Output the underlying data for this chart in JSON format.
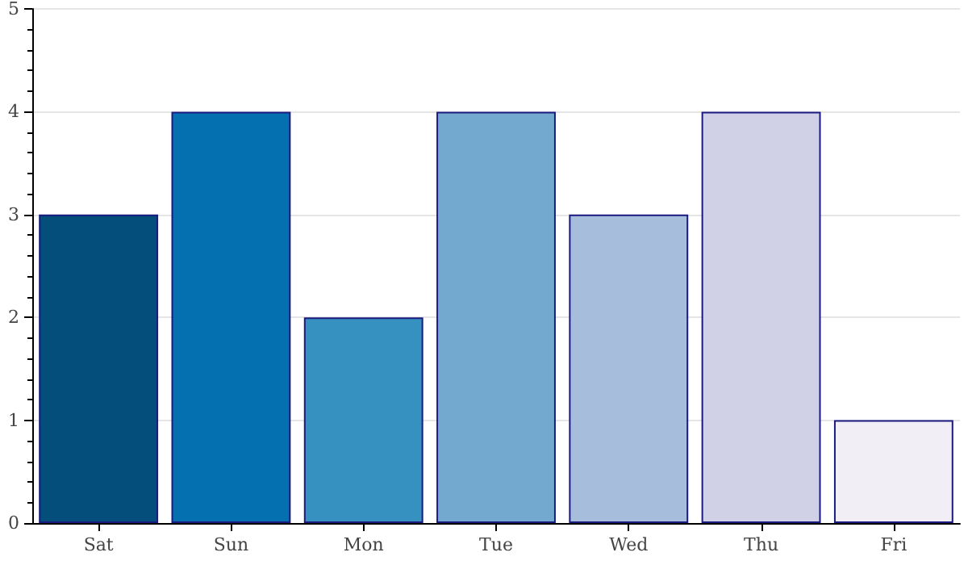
{
  "chart_data": {
    "type": "bar",
    "categories": [
      "Sat",
      "Sun",
      "Mon",
      "Tue",
      "Wed",
      "Thu",
      "Fri"
    ],
    "values": [
      3,
      4,
      2,
      4,
      3,
      4,
      1
    ],
    "colors": [
      "#034e7b",
      "#0570b0",
      "#3690c0",
      "#74a9cf",
      "#a6bddb",
      "#d0d1e6",
      "#f1eef6"
    ],
    "ylim": [
      0,
      5
    ],
    "yticks": [
      0,
      1,
      2,
      3,
      4,
      5
    ],
    "grid": "y"
  }
}
